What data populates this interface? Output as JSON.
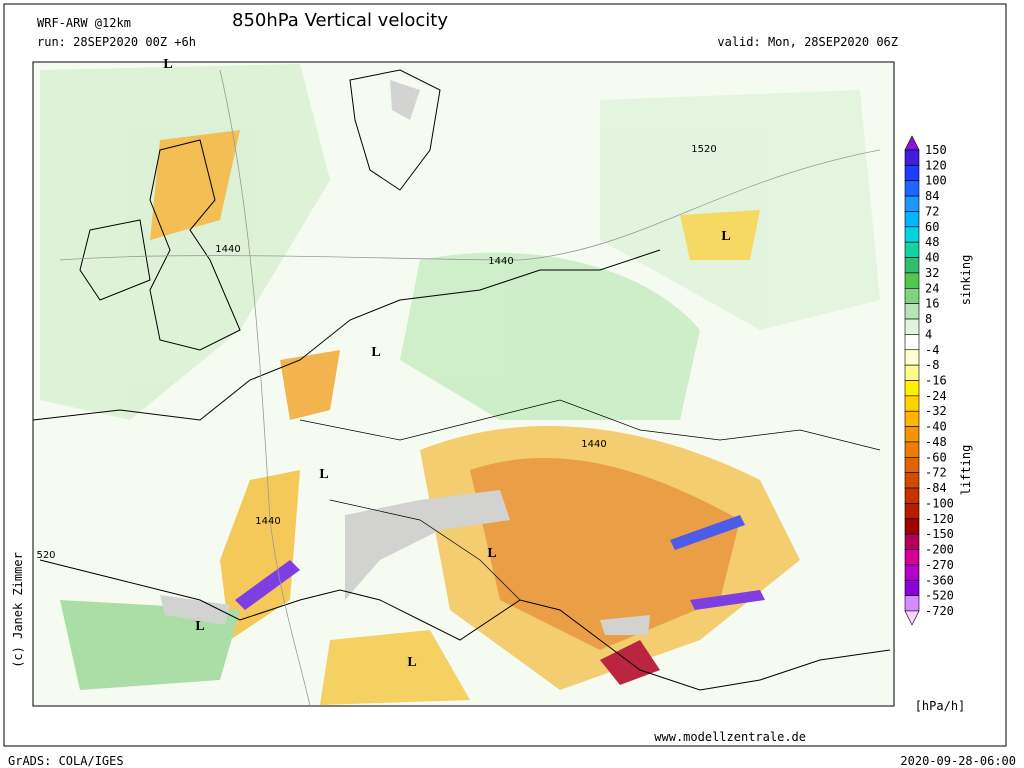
{
  "header": {
    "model": "WRF-ARW @12km",
    "title": "850hPa Vertical velocity",
    "run": "run: 28SEP2020 00Z +6h",
    "valid": "valid: Mon, 28SEP2020 06Z"
  },
  "map": {
    "labels": [
      "L",
      "1440",
      "1440",
      "1520",
      "L",
      "L",
      "L",
      "1440",
      "1440",
      "L",
      "520",
      "L",
      "L"
    ]
  },
  "colorbar": {
    "levels": [
      150,
      120,
      100,
      84,
      72,
      60,
      48,
      40,
      32,
      24,
      16,
      8,
      4,
      -4,
      -8,
      -16,
      -24,
      -32,
      -40,
      -48,
      -60,
      -72,
      -84,
      -100,
      -120,
      -150,
      -200,
      -270,
      -360,
      -520,
      -720
    ],
    "colors": [
      "#8c14dc",
      "#3c1edc",
      "#1e3cff",
      "#1e64ff",
      "#1e96ff",
      "#00b4ff",
      "#00d2e6",
      "#14d2a0",
      "#32be6e",
      "#50c850",
      "#82d282",
      "#b4e6b4",
      "#dcf5dc",
      "#ffffff",
      "#ffffd2",
      "#fffa8c",
      "#fff000",
      "#ffd200",
      "#ffb400",
      "#f59600",
      "#eb7d00",
      "#e16400",
      "#d24b00",
      "#c83200",
      "#b41e00",
      "#a00000",
      "#b4005a",
      "#d20096",
      "#b400c8",
      "#8c00dc",
      "#d28cff",
      "#fad2ff"
    ],
    "upper_label": "sinking",
    "lower_label": "lifting",
    "unit": "[hPa/h]"
  },
  "footer": {
    "website": "www.modellzentrale.de",
    "software": "GrADS: COLA/IGES",
    "timestamp": "2020-09-28-06:00",
    "credit": "(c) Janek Zimmer"
  }
}
